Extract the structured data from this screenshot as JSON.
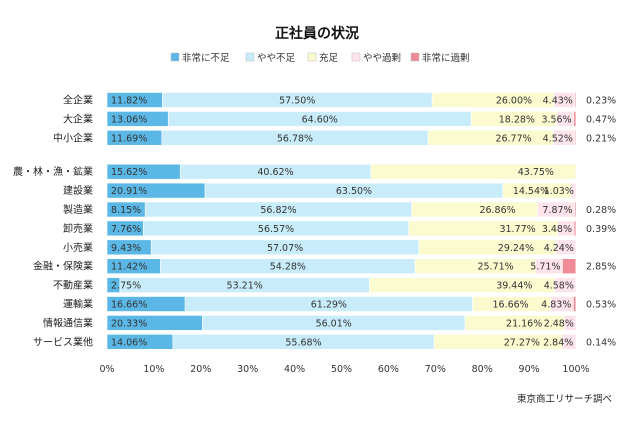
{
  "chart_data": {
    "type": "bar",
    "stacked": true,
    "orientation": "horizontal",
    "title": "正社員の状況",
    "categories": [
      "全企業",
      "大企業",
      "中小企業",
      "農・林・漁・鉱業",
      "建設業",
      "製造業",
      "卸売業",
      "小売業",
      "金融・保険業",
      "不動産業",
      "運輸業",
      "情報通信業",
      "サービス業他"
    ],
    "series": [
      {
        "name": "非常に不足",
        "color": "#5bb8e6",
        "values": [
          11.82,
          13.06,
          11.69,
          15.62,
          20.91,
          8.15,
          7.76,
          9.43,
          11.42,
          2.75,
          16.66,
          20.33,
          14.06
        ]
      },
      {
        "name": "やや不足",
        "color": "#c8ecf9",
        "values": [
          57.5,
          64.6,
          56.78,
          40.62,
          63.5,
          56.82,
          56.57,
          57.07,
          54.28,
          53.21,
          61.29,
          56.01,
          55.68
        ]
      },
      {
        "name": "充足",
        "color": "#fbfbcf",
        "values": [
          26.0,
          18.28,
          26.77,
          43.75,
          14.54,
          26.86,
          31.77,
          29.24,
          25.71,
          39.44,
          16.66,
          21.16,
          27.27
        ]
      },
      {
        "name": "やや過剰",
        "color": "#fde3ea",
        "values": [
          4.43,
          3.56,
          4.52,
          0,
          1.03,
          7.87,
          3.48,
          4.24,
          5.71,
          4.58,
          4.83,
          2.48,
          2.84
        ]
      },
      {
        "name": "非常に過剰",
        "color": "#f08a96",
        "values": [
          0.23,
          0.47,
          0.21,
          0,
          0,
          0.28,
          0.39,
          0,
          2.85,
          0,
          0.53,
          0,
          0.14
        ]
      }
    ],
    "value_labels": [
      [
        "11.82%",
        "57.50%",
        "26.00%",
        "4.43%",
        "0.23%"
      ],
      [
        "13.06%",
        "64.60%",
        "18.28%",
        "3.56%",
        "0.47%"
      ],
      [
        "11.69%",
        "56.78%",
        "26.77%",
        "4.52%",
        "0.21%"
      ],
      [
        "15.62%",
        "40.62%",
        "43.75%",
        "",
        ""
      ],
      [
        "20.91%",
        "63.50%",
        "14.54%",
        "1.03%",
        ""
      ],
      [
        "8.15%",
        "56.82%",
        "26.86%",
        "7.87%",
        "0.28%"
      ],
      [
        "7.76%",
        "56.57%",
        "31.77%",
        "3.48%",
        "0.39%"
      ],
      [
        "9.43%",
        "57.07%",
        "29.24%",
        "4.24%",
        ""
      ],
      [
        "11.42%",
        "54.28%",
        "25.71%",
        "5.71%",
        "2.85%"
      ],
      [
        "2.75%",
        "53.21%",
        "39.44%",
        "4.58%",
        ""
      ],
      [
        "16.66%",
        "61.29%",
        "16.66%",
        "4.83%",
        "0.53%"
      ],
      [
        "20.33%",
        "56.01%",
        "21.16%",
        "2.48%",
        ""
      ],
      [
        "14.06%",
        "55.68%",
        "27.27%",
        "2.84%",
        "0.14%"
      ]
    ],
    "x_ticks": [
      "0%",
      "10%",
      "20%",
      "30%",
      "40%",
      "50%",
      "60%",
      "70%",
      "80%",
      "90%",
      "100%"
    ],
    "xlim": [
      0,
      100
    ],
    "group_gap_after": 2,
    "legend_position": "top-right",
    "grid": false
  },
  "source_note": "東京商工リサーチ調べ"
}
